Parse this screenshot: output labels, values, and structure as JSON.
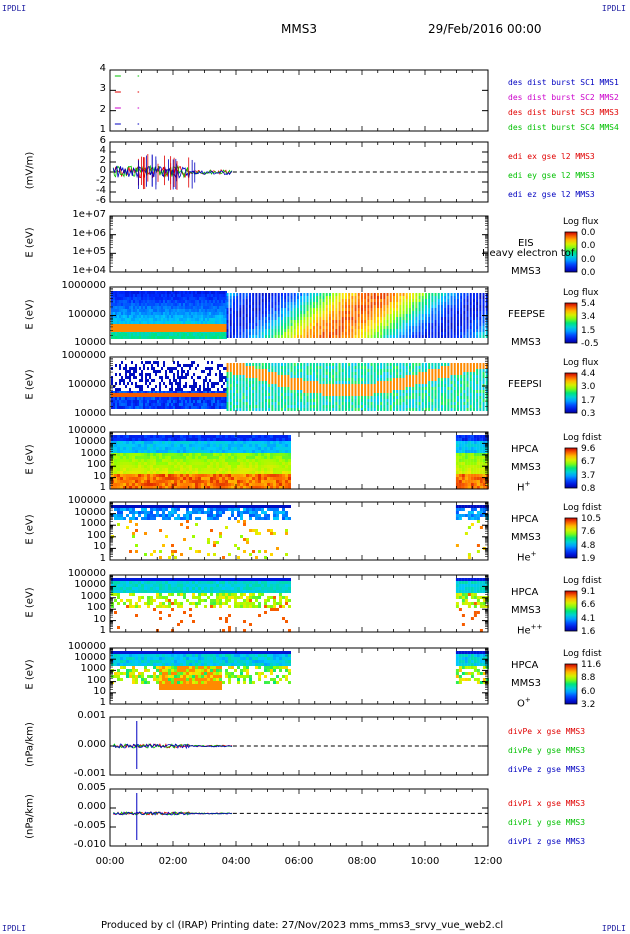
{
  "corners": {
    "tl": "IPDLI",
    "tr": "IPDLI",
    "bl": "IPDLI",
    "br": "IPDLI"
  },
  "header": {
    "title": "MMS3",
    "date": "29/Feb/2016 00:00"
  },
  "footer": {
    "text": "Produced by cl (IRAP)   Printing date: 27/Nov/2023   mms_mms3_srvy_vue_web2.cl"
  },
  "colors": {
    "red": "#e00000",
    "green": "#00c000",
    "blue": "#0000c0",
    "magenta": "#cc00cc"
  },
  "xaxis": {
    "ticks": [
      "00:00",
      "02:00",
      "04:00",
      "06:00",
      "08:00",
      "10:00",
      "12:00"
    ],
    "range_hours": [
      0,
      12
    ]
  },
  "chart_data": [
    {
      "type": "line",
      "id": "burst",
      "yticks": [
        "4",
        "3",
        "2",
        "1"
      ],
      "ylim": [
        0.5,
        4.5
      ],
      "legend": [
        {
          "text": "des dist burst SC1 MMS1",
          "color": "#0000c0"
        },
        {
          "text": "des dist burst SC2 MMS2",
          "color": "#cc00cc"
        },
        {
          "text": "des dist burst SC3 MMS3",
          "color": "#e00000"
        },
        {
          "text": "des dist burst SC4 MMS4",
          "color": "#00c000"
        }
      ],
      "series": [
        {
          "sc": 4,
          "x": [
            0.25,
            0.9
          ],
          "color": "#00c000"
        },
        {
          "sc": 3,
          "x": [
            0.25,
            0.9
          ],
          "color": "#e00000"
        },
        {
          "sc": 2,
          "x": [
            0.25,
            0.9
          ],
          "color": "#cc00cc"
        },
        {
          "sc": 1,
          "x": [
            0.25,
            0.9
          ],
          "color": "#0000c0"
        }
      ]
    },
    {
      "type": "line",
      "id": "edi",
      "ylabel": "(mV/m)",
      "yticks": [
        "6",
        "4",
        "2",
        "0",
        "-2",
        "-4",
        "-6"
      ],
      "ylim": [
        -6,
        6
      ],
      "legend": [
        {
          "text": "edi ex gse l2 MMS3",
          "color": "#e00000"
        },
        {
          "text": "edi ey gse l2 MMS3",
          "color": "#00c000"
        },
        {
          "text": "edi ez gse l2 MMS3",
          "color": "#0000c0"
        }
      ],
      "xrange_data": [
        0.1,
        3.9
      ]
    },
    {
      "type": "heatmap",
      "id": "eis",
      "ylabel": "E (eV)",
      "yticks": [
        "1e+07",
        "1e+06",
        "1e+05",
        "1e+04"
      ],
      "labels": [
        "EIS",
        "Heavy electron tof",
        "MMS3"
      ],
      "cbtitle": "Log flux",
      "cbticks": [
        "0.0",
        "0.0",
        "0.0",
        "0.0"
      ]
    },
    {
      "type": "heatmap",
      "id": "feepse",
      "ylabel": "E (eV)",
      "yticks": [
        "1000000",
        "100000",
        "10000"
      ],
      "labels": [
        "FEEPSE",
        "MMS3"
      ],
      "cbtitle": "Log flux",
      "cbticks": [
        "5.4",
        "3.4",
        "1.5",
        "-0.5"
      ]
    },
    {
      "type": "heatmap",
      "id": "feepsi",
      "ylabel": "E (eV)",
      "yticks": [
        "1000000",
        "100000",
        "10000"
      ],
      "labels": [
        "FEEPSI",
        "MMS3"
      ],
      "cbtitle": "Log flux",
      "cbticks": [
        "4.4",
        "3.0",
        "1.7",
        "0.3"
      ]
    },
    {
      "type": "heatmap",
      "id": "hpca_h",
      "ylabel": "E (eV)",
      "yticks": [
        "100000",
        "10000",
        "1000",
        "100",
        "10",
        "1"
      ],
      "labels": [
        "HPCA",
        "MMS3"
      ],
      "species": "H",
      "sup": "+",
      "cbtitle": "Log fdist",
      "cbticks": [
        "9.6",
        "6.7",
        "3.7",
        "0.8"
      ],
      "coverage_hours": [
        [
          0,
          5.75
        ],
        [
          10.95,
          12
        ]
      ]
    },
    {
      "type": "heatmap",
      "id": "hpca_he",
      "ylabel": "E (eV)",
      "yticks": [
        "100000",
        "10000",
        "1000",
        "100",
        "10",
        "1"
      ],
      "labels": [
        "HPCA",
        "MMS3"
      ],
      "species": "He",
      "sup": "+",
      "cbtitle": "Log fdist",
      "cbticks": [
        "10.5",
        "7.6",
        "4.8",
        "1.9"
      ],
      "coverage_hours": [
        [
          0,
          5.75
        ],
        [
          10.95,
          12
        ]
      ]
    },
    {
      "type": "heatmap",
      "id": "hpca_hepp",
      "ylabel": "E (eV)",
      "yticks": [
        "100000",
        "10000",
        "1000",
        "100",
        "10",
        "1"
      ],
      "labels": [
        "HPCA",
        "MMS3"
      ],
      "species": "He",
      "sup": "++",
      "cbtitle": "Log fdist",
      "cbticks": [
        "9.1",
        "6.6",
        "4.1",
        "1.6"
      ],
      "coverage_hours": [
        [
          0,
          5.75
        ],
        [
          10.95,
          12
        ]
      ]
    },
    {
      "type": "heatmap",
      "id": "hpca_o",
      "ylabel": "E (eV)",
      "yticks": [
        "100000",
        "10000",
        "1000",
        "100",
        "10",
        "1"
      ],
      "labels": [
        "HPCA",
        "MMS3"
      ],
      "species": "O",
      "sup": "+",
      "cbtitle": "Log fdist",
      "cbticks": [
        "11.6",
        "8.8",
        "6.0",
        "3.2"
      ],
      "coverage_hours": [
        [
          0,
          5.75
        ],
        [
          10.95,
          12
        ]
      ]
    },
    {
      "type": "line",
      "id": "divpe",
      "ylabel": "(nPa/km)",
      "yticks": [
        "0.001",
        "0.000",
        "-0.001"
      ],
      "ylim": [
        -0.0017,
        0.0017
      ],
      "legend": [
        {
          "text": "divPe x gse MMS3",
          "color": "#e00000"
        },
        {
          "text": "divPe y gse MMS3",
          "color": "#00c000"
        },
        {
          "text": "divPe z gse MMS3",
          "color": "#0000c0"
        }
      ],
      "xrange_data": [
        0.1,
        3.9
      ]
    },
    {
      "type": "line",
      "id": "divpi",
      "ylabel": "(nPa/km)",
      "yticks": [
        "0.005",
        "0.000",
        "-0.005",
        "-0.010"
      ],
      "ylim": [
        -0.012,
        0.009
      ],
      "legend": [
        {
          "text": "divPi x gse MMS3",
          "color": "#e00000"
        },
        {
          "text": "divPi y gse MMS3",
          "color": "#00c000"
        },
        {
          "text": "divPi z gse MMS3",
          "color": "#0000c0"
        }
      ],
      "xrange_data": [
        0.1,
        3.9
      ]
    }
  ]
}
